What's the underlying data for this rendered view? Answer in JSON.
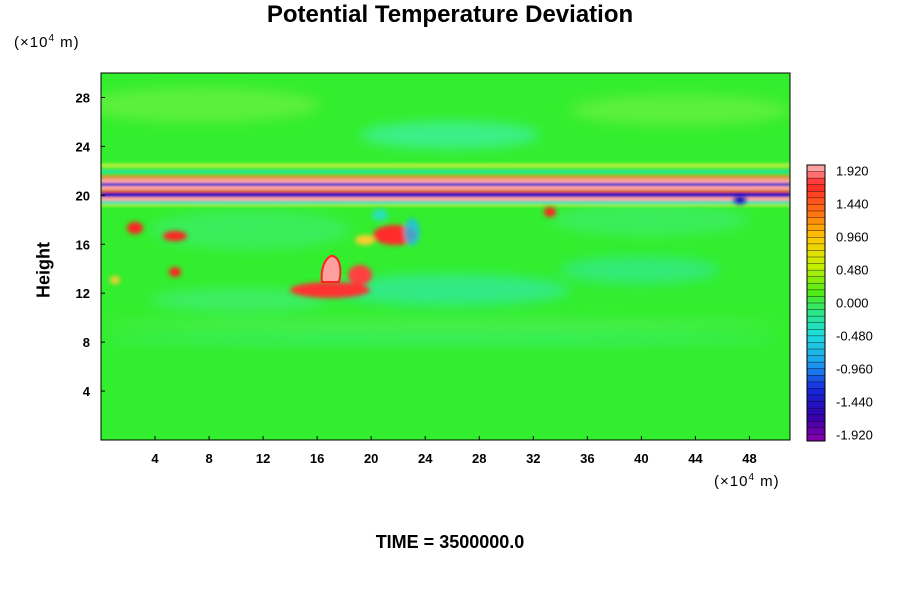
{
  "chart_data": {
    "type": "heatmap",
    "title": "Potential Temperature Deviation",
    "ylabel": "Height",
    "y_unit": {
      "prefix": "(×10",
      "exp": "4",
      "suffix": " m)"
    },
    "x_unit": {
      "prefix": "(×10",
      "exp": "4",
      "suffix": " m)"
    },
    "footer": "TIME = 3500000.0",
    "xlim": [
      0,
      51
    ],
    "ylim": [
      0,
      30
    ],
    "x_ticks": [
      4,
      8,
      12,
      16,
      20,
      24,
      28,
      32,
      36,
      40,
      44,
      48
    ],
    "y_ticks": [
      4,
      8,
      12,
      16,
      20,
      24,
      28
    ],
    "color_range": [
      -2.0,
      2.0
    ],
    "colorbar_labels": [
      "1.920",
      "1.440",
      "0.960",
      "0.480",
      "0.000",
      "-0.480",
      "-0.960",
      "-1.440",
      "-1.920"
    ],
    "colors": {
      "background_field": "#33ee2e",
      "positive_strong": "#ffa0a0",
      "positive": "#ff2222",
      "negative": "#22ddee",
      "negative_strong": "#1010c0"
    }
  }
}
